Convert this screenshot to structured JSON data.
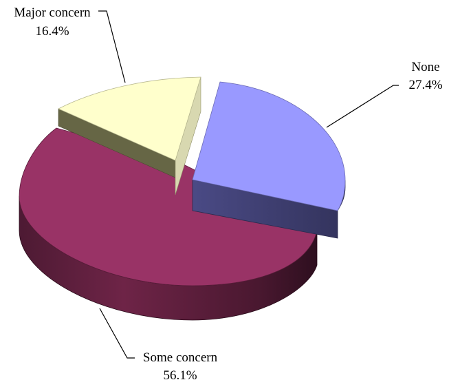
{
  "chart_data": {
    "type": "pie",
    "style": "3d-exploded",
    "title": "",
    "legend": "none",
    "slices": [
      {
        "name": "None",
        "value": 27.4,
        "value_label": "27.4%",
        "color": "#9999ff",
        "side_color": "#3d3d70",
        "exploded": true
      },
      {
        "name": "Some concern",
        "value": 56.1,
        "value_label": "56.1%",
        "color": "#993366",
        "side_color": "#5c1e3c",
        "exploded": false
      },
      {
        "name": "Major concern",
        "value": 16.4,
        "value_label": "16.4%",
        "color": "#ffffcc",
        "side_color": "#666645",
        "exploded": true
      }
    ]
  }
}
